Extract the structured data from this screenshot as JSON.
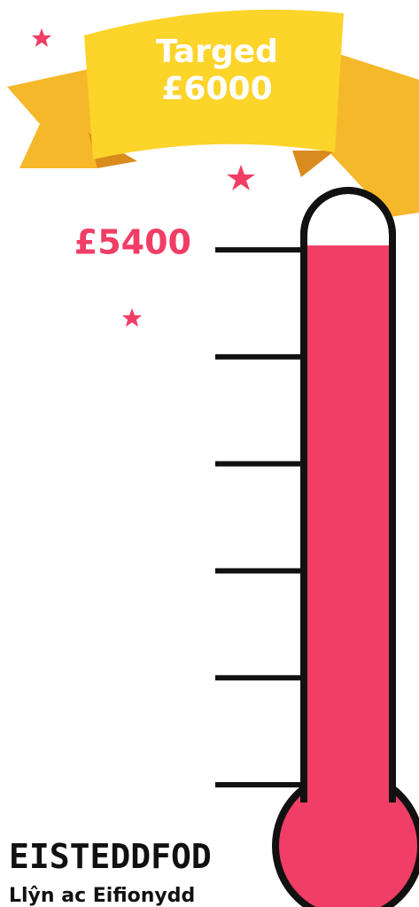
{
  "chart_data": {
    "type": "thermometer",
    "title": "Targed",
    "subtitle": "£6000",
    "values": [
      5400
    ],
    "value_labels": [
      "£5400"
    ],
    "color": "#f03e66",
    "ylim": [
      0,
      6000
    ],
    "yticks": [
      0,
      1080,
      2160,
      3240,
      4320,
      5400
    ]
  },
  "logo": {
    "name": "EISTEDDFOD",
    "region": "Llŷn ac Eifionydd"
  }
}
